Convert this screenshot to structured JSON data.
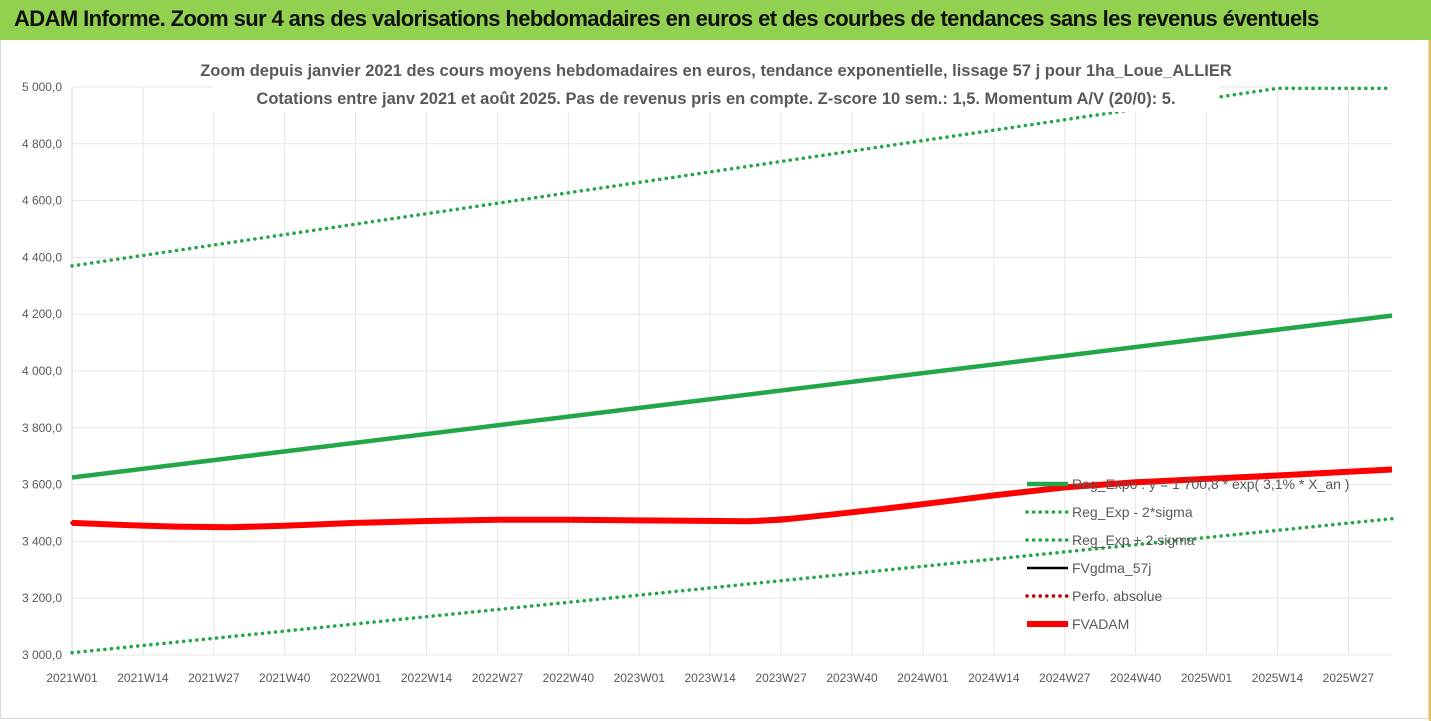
{
  "banner": {
    "title": "ADAM Informe. Zoom sur 4 ans des valorisations hebdomadaires en euros et des courbes de tendances sans les revenus éventuels"
  },
  "colors": {
    "banner_bg": "#92d050",
    "trend_green": "#22a64a",
    "fvadam_red": "#ff0000",
    "fvgdma_black": "#000000",
    "perfo_red": "#c00000"
  },
  "chart_data": {
    "type": "line",
    "title": [
      "Zoom depuis janvier 2021 des cours moyens hebdomadaires en euros, tendance exponentielle, lissage 57 j pour 1ha_Loue_ALLIER",
      "Cotations entre janv 2021 et août 2025.  Pas de revenus pris en compte. Z-score 10 sem.: 1,5. Momentum A/V (20/0): 5."
    ],
    "ylim": [
      3000,
      5000
    ],
    "yticks": [
      "3 000,0",
      "3 200,0",
      "3 400,0",
      "3 600,0",
      "3 800,0",
      "4 000,0",
      "4 200,0",
      "4 400,0",
      "4 600,0",
      "4 800,0",
      "5 000,0"
    ],
    "x_range_weeks": [
      1,
      243
    ],
    "xticks": [
      "2021W01",
      "2021W14",
      "2021W27",
      "2021W40",
      "2022W01",
      "2022W14",
      "2022W27",
      "2022W40",
      "2023W01",
      "2023W14",
      "2023W27",
      "2023W40",
      "2024W01",
      "2024W14",
      "2024W27",
      "2024W40",
      "2025W01",
      "2025W14",
      "2025W27"
    ],
    "xtick_weeks": [
      1,
      14,
      27,
      40,
      53,
      66,
      79,
      92,
      105,
      118,
      131,
      144,
      157,
      170,
      183,
      196,
      209,
      222,
      235
    ],
    "legend_position": "right",
    "series": [
      {
        "name": "Reg_Expo : y = 1 700,8 * exp( 3,1% *  X_an )",
        "style": "solid-thick",
        "color": "#22a64a",
        "x": [
          1,
          243
        ],
        "values": [
          3625,
          4195
        ]
      },
      {
        "name": "Reg_Exp - 2*sigma",
        "style": "dotted",
        "color": "#22a64a",
        "x": [
          1,
          243
        ],
        "values": [
          3008,
          3480
        ]
      },
      {
        "name": "Reg_Exp + 2 sigma",
        "style": "dotted",
        "color": "#22a64a",
        "x": [
          1,
          222,
          243
        ],
        "values": [
          4370,
          4995,
          4995
        ]
      },
      {
        "name": "FVgdma_57j",
        "style": "solid",
        "color": "#000000",
        "x": [
          1,
          10,
          20,
          30,
          40,
          53,
          66,
          79,
          92,
          105,
          120,
          125,
          131,
          140,
          150,
          160,
          170,
          183,
          196,
          209,
          222,
          235,
          243
        ],
        "values": [
          3465,
          3458,
          3452,
          3450,
          3455,
          3465,
          3472,
          3476,
          3476,
          3474,
          3472,
          3476,
          3483,
          3496,
          3515,
          3538,
          3562,
          3590,
          3608,
          3620,
          3632,
          3645,
          3653
        ]
      },
      {
        "name": "Perfo. absolue",
        "style": "dotted",
        "color": "#c00000",
        "x": [
          1,
          10,
          20,
          30,
          40,
          53,
          66,
          79,
          92,
          105,
          120,
          125,
          131,
          140,
          150,
          160,
          170,
          183,
          196,
          209,
          222,
          235,
          243
        ],
        "values": [
          3465,
          3458,
          3452,
          3450,
          3455,
          3465,
          3472,
          3476,
          3476,
          3474,
          3472,
          3473,
          3478,
          3494,
          3515,
          3538,
          3562,
          3590,
          3608,
          3620,
          3632,
          3645,
          3653
        ]
      },
      {
        "name": "FVADAM",
        "style": "solid-thicker",
        "color": "#ff0000",
        "x": [
          1,
          10,
          20,
          30,
          40,
          53,
          66,
          79,
          92,
          105,
          120,
          125,
          131,
          140,
          150,
          160,
          170,
          183,
          196,
          209,
          222,
          235,
          243
        ],
        "values": [
          3465,
          3458,
          3452,
          3450,
          3455,
          3465,
          3472,
          3476,
          3476,
          3474,
          3472,
          3471,
          3476,
          3494,
          3515,
          3538,
          3562,
          3590,
          3608,
          3620,
          3632,
          3645,
          3653
        ]
      }
    ]
  }
}
